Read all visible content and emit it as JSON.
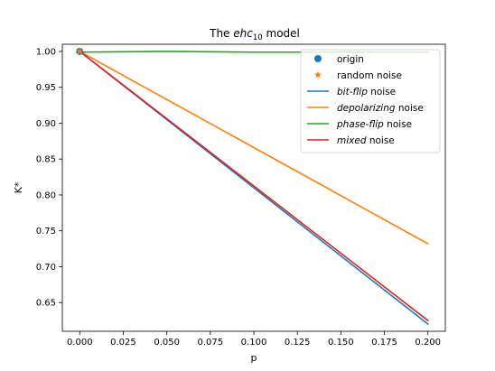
{
  "chart_data": {
    "type": "line",
    "title_prefix": "The ",
    "title_math": "ehc",
    "title_sub": "10",
    "title_suffix": " model",
    "xlabel": "p",
    "ylabel": "K*",
    "xlim": [
      -0.01,
      0.21
    ],
    "ylim": [
      0.61,
      1.01
    ],
    "xticks": [
      "0.000",
      "0.025",
      "0.050",
      "0.075",
      "0.100",
      "0.125",
      "0.150",
      "0.175",
      "0.200"
    ],
    "yticks": [
      "0.65",
      "0.70",
      "0.75",
      "0.80",
      "0.85",
      "0.90",
      "0.95",
      "1.00"
    ],
    "grid": false,
    "legend_placement": "top-right",
    "points": [
      {
        "name": "origin",
        "marker": "circle",
        "color": "#1f77b4",
        "x": 0.0,
        "y": 1.0
      },
      {
        "name": "random noise",
        "marker": "star",
        "color": "#ff7f0e",
        "x": 0.0,
        "y": 1.0
      }
    ],
    "series": [
      {
        "italic": "bit-flip",
        "suffix": " noise",
        "color": "#1f77b4",
        "x": [
          0.0,
          0.2
        ],
        "y": [
          1.0,
          0.62
        ]
      },
      {
        "italic": "depolarizing",
        "suffix": " noise",
        "color": "#ff7f0e",
        "x": [
          0.0,
          0.2
        ],
        "y": [
          1.0,
          0.732
        ]
      },
      {
        "italic": "phase-flip",
        "suffix": " noise",
        "color": "#2ca02c",
        "x": [
          0.0,
          0.05,
          0.1,
          0.15,
          0.2
        ],
        "y": [
          0.999,
          1.0,
          0.999,
          0.999,
          0.999
        ]
      },
      {
        "italic": "mixed",
        "suffix": " noise",
        "color": "#d62728",
        "x": [
          0.0,
          0.2
        ],
        "y": [
          1.0,
          0.625
        ]
      }
    ]
  }
}
